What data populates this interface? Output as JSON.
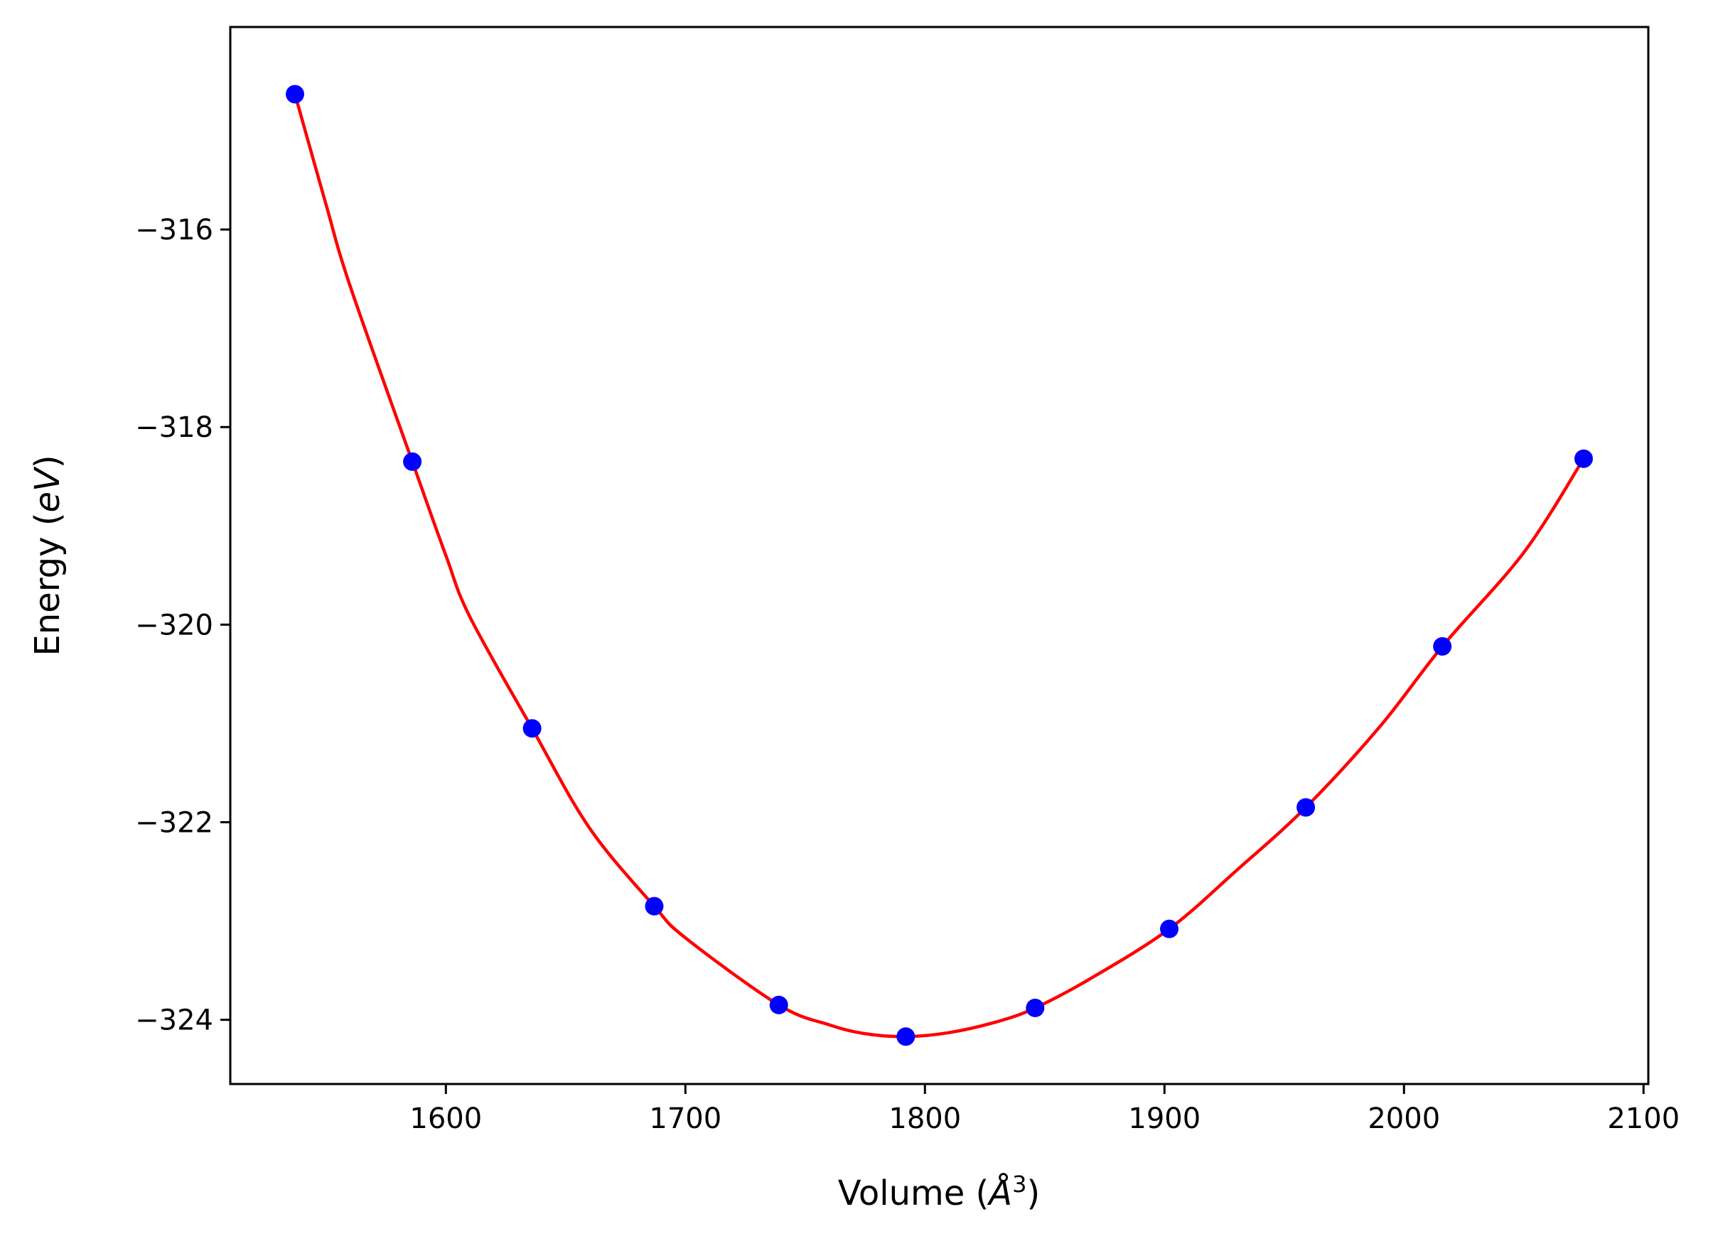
{
  "chart_data": {
    "type": "scatter",
    "title": "",
    "xlabel": {
      "prefix": "Volume (",
      "symbol": "Å",
      "exponent": "3",
      "suffix": ")"
    },
    "ylabel": {
      "prefix": "Energy (",
      "unit": "eV",
      "suffix": ")"
    },
    "xlim": [
      1510,
      2102
    ],
    "ylim": [
      -324.65,
      -313.95
    ],
    "xticks": [
      1600,
      1700,
      1800,
      1900,
      2000,
      2100
    ],
    "xtick_labels": [
      "1600",
      "1700",
      "1800",
      "1900",
      "2000",
      "2100"
    ],
    "yticks": [
      -316,
      -318,
      -320,
      -322,
      -324
    ],
    "ytick_labels": [
      "−316",
      "−318",
      "−320",
      "−322",
      "−324"
    ],
    "grid": false,
    "series": [
      {
        "kind": "points",
        "color": "#0000ff",
        "x": [
          1537,
          1586,
          1636,
          1687,
          1739,
          1792,
          1846,
          1902,
          1959,
          2016,
          2075
        ],
        "y": [
          -314.63,
          -318.35,
          -321.05,
          -322.85,
          -323.85,
          -324.17,
          -323.88,
          -323.08,
          -321.85,
          -320.22,
          -318.32
        ]
      },
      {
        "kind": "fit-curve",
        "color": "#ff0000",
        "x": [
          1537,
          1550,
          1560,
          1586,
          1600,
          1610,
          1636,
          1660,
          1687,
          1700,
          1739,
          1760,
          1775,
          1792,
          1810,
          1830,
          1846,
          1870,
          1902,
          1930,
          1959,
          1990,
          2016,
          2050,
          2075
        ],
        "y": [
          -314.63,
          -315.75,
          -316.57,
          -318.35,
          -319.3,
          -319.92,
          -321.05,
          -322.06,
          -322.85,
          -323.17,
          -323.85,
          -324.05,
          -324.14,
          -324.17,
          -324.13,
          -324.02,
          -323.88,
          -323.57,
          -323.08,
          -322.49,
          -321.85,
          -321.03,
          -320.22,
          -319.27,
          -318.32
        ]
      }
    ]
  }
}
